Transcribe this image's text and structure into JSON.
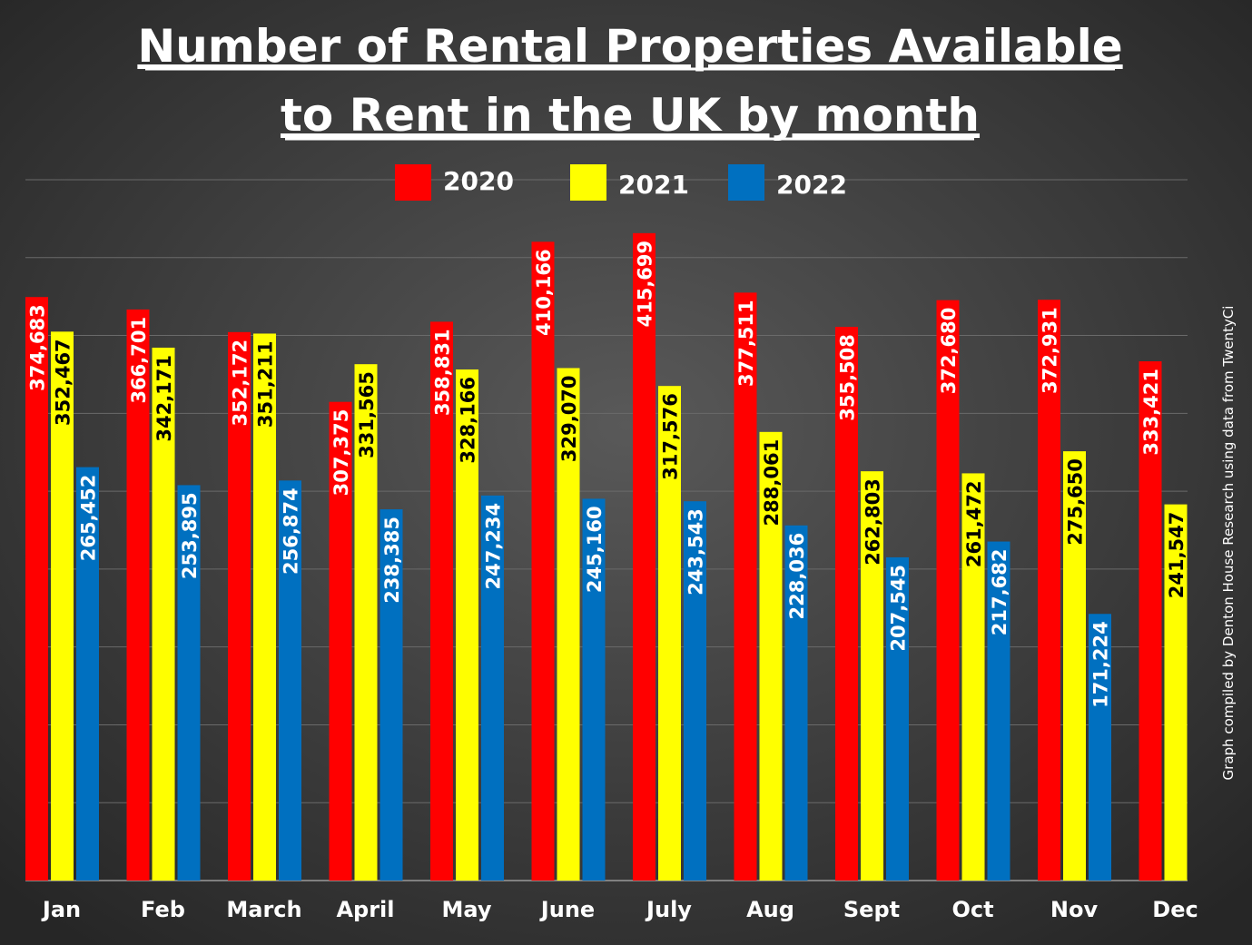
{
  "chart_data": {
    "type": "bar",
    "title": [
      "Number of Rental Properties Available",
      "to Rent in the UK by month"
    ],
    "xlabel": "",
    "ylabel": "",
    "ylim": [
      0,
      450000
    ],
    "grid": true,
    "legend_position": "top-center",
    "categories": [
      "Jan",
      "Feb",
      "March",
      "April",
      "May",
      "June",
      "July",
      "Aug",
      "Sept",
      "Oct",
      "Nov",
      "Dec"
    ],
    "series": [
      {
        "name": "2020",
        "color": "#ff0000",
        "label_color": "#ffffff",
        "values": [
          374683,
          366701,
          352172,
          307375,
          358831,
          410166,
          415699,
          377511,
          355508,
          372680,
          372931,
          333421
        ]
      },
      {
        "name": "2021",
        "color": "#ffff00",
        "label_color": "#000000",
        "values": [
          352467,
          342171,
          351211,
          331565,
          328166,
          329070,
          317576,
          288061,
          262803,
          261472,
          275650,
          241547
        ]
      },
      {
        "name": "2022",
        "color": "#0070c0",
        "label_color": "#ffffff",
        "values": [
          265452,
          253895,
          256874,
          238385,
          247234,
          245160,
          243543,
          228036,
          207545,
          217682,
          171224,
          null
        ]
      }
    ],
    "annotation": "Graph compiled by Denton House Research using data from TwentyCi"
  }
}
